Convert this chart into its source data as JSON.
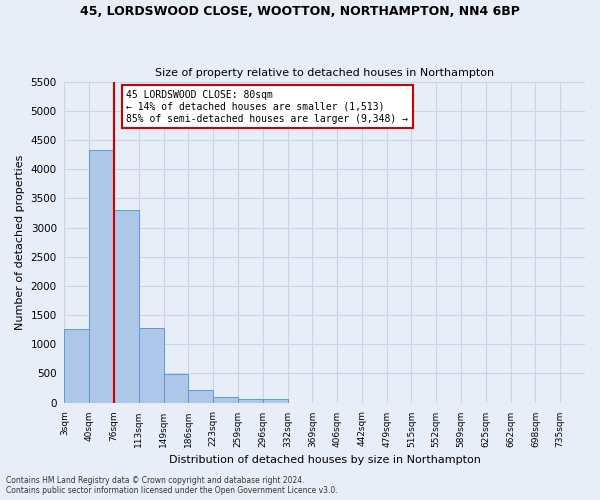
{
  "title_line1": "45, LORDSWOOD CLOSE, WOOTTON, NORTHAMPTON, NN4 6BP",
  "title_line2": "Size of property relative to detached houses in Northampton",
  "xlabel": "Distribution of detached houses by size in Northampton",
  "ylabel": "Number of detached properties",
  "bar_values": [
    1270,
    4330,
    3300,
    1280,
    490,
    210,
    90,
    70,
    60,
    0,
    0,
    0,
    0,
    0,
    0,
    0,
    0,
    0,
    0,
    0
  ],
  "bar_labels": [
    "3sqm",
    "40sqm",
    "76sqm",
    "113sqm",
    "149sqm",
    "186sqm",
    "223sqm",
    "259sqm",
    "296sqm",
    "332sqm",
    "369sqm",
    "406sqm",
    "442sqm",
    "479sqm",
    "515sqm",
    "552sqm",
    "589sqm",
    "625sqm",
    "662sqm",
    "698sqm",
    "735sqm"
  ],
  "bar_color": "#aec6e8",
  "bar_edge_color": "#5b9bd5",
  "grid_color": "#c8d4e8",
  "background_color": "#e8eef8",
  "marker_label_line1": "45 LORDSWOOD CLOSE: 80sqm",
  "marker_label_line2": "← 14% of detached houses are smaller (1,513)",
  "marker_label_line3": "85% of semi-detached houses are larger (9,348) →",
  "annotation_box_facecolor": "#ffffff",
  "annotation_border_color": "#cc0000",
  "marker_line_color": "#cc0000",
  "ylim": [
    0,
    5500
  ],
  "yticks": [
    0,
    500,
    1000,
    1500,
    2000,
    2500,
    3000,
    3500,
    4000,
    4500,
    5000,
    5500
  ],
  "footnote1": "Contains HM Land Registry data © Crown copyright and database right 2024.",
  "footnote2": "Contains public sector information licensed under the Open Government Licence v3.0."
}
